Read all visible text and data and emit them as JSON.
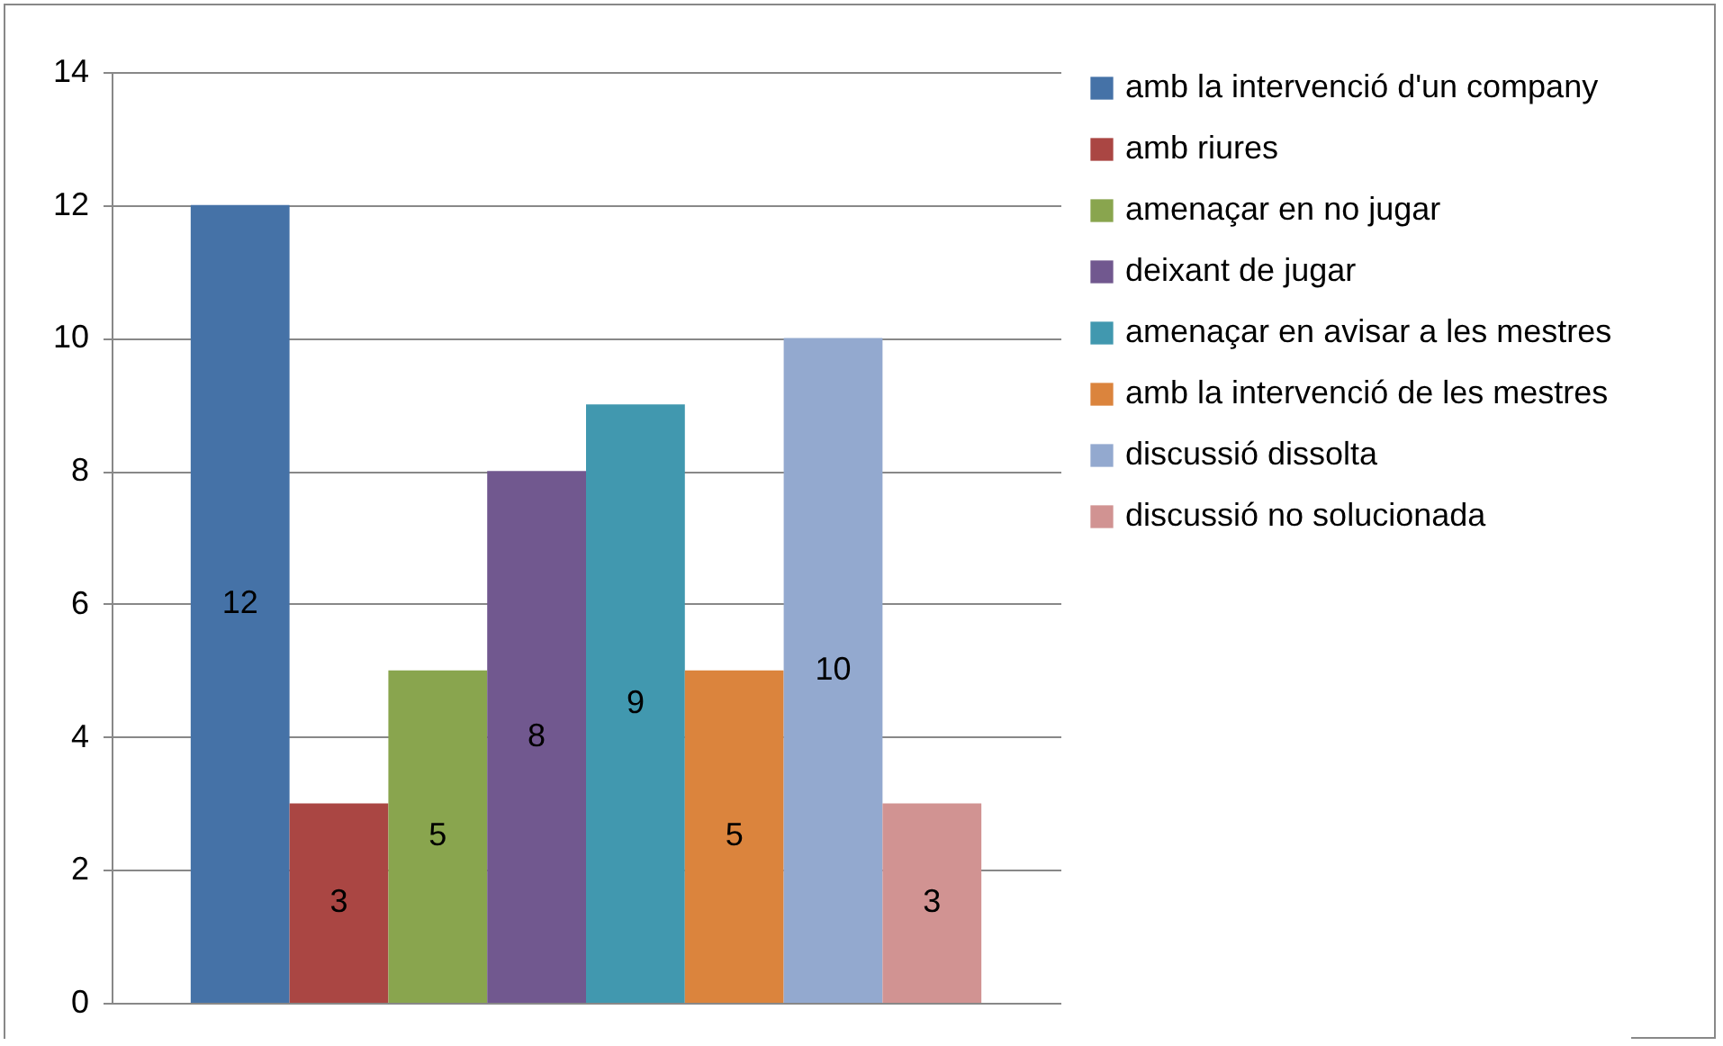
{
  "chart_data": {
    "type": "bar",
    "categories": [
      null
    ],
    "series": [
      {
        "name": "amb la intervenció d'un company",
        "color": "#4572a7",
        "values": [
          12
        ]
      },
      {
        "name": "amb riures",
        "color": "#aa4643",
        "values": [
          3
        ]
      },
      {
        "name": "amenaçar en no jugar",
        "color": "#89a54e",
        "values": [
          5
        ]
      },
      {
        "name": "deixant de jugar",
        "color": "#71588f",
        "values": [
          8
        ]
      },
      {
        "name": "amenaçar en avisar a les mestres",
        "color": "#4198af",
        "values": [
          9
        ]
      },
      {
        "name": "amb la intervenció de les mestres",
        "color": "#db843d",
        "values": [
          5
        ]
      },
      {
        "name": "discussió dissolta",
        "color": "#93a9cf",
        "values": [
          10
        ]
      },
      {
        "name": "discussió no solucionada",
        "color": "#d19392",
        "values": [
          3
        ]
      }
    ],
    "ylim": [
      0,
      14
    ],
    "yticks": [
      0,
      2,
      4,
      6,
      8,
      10,
      12,
      14
    ],
    "grid": "y",
    "legend": "right",
    "data_labels": true,
    "tick_labels": "y"
  }
}
